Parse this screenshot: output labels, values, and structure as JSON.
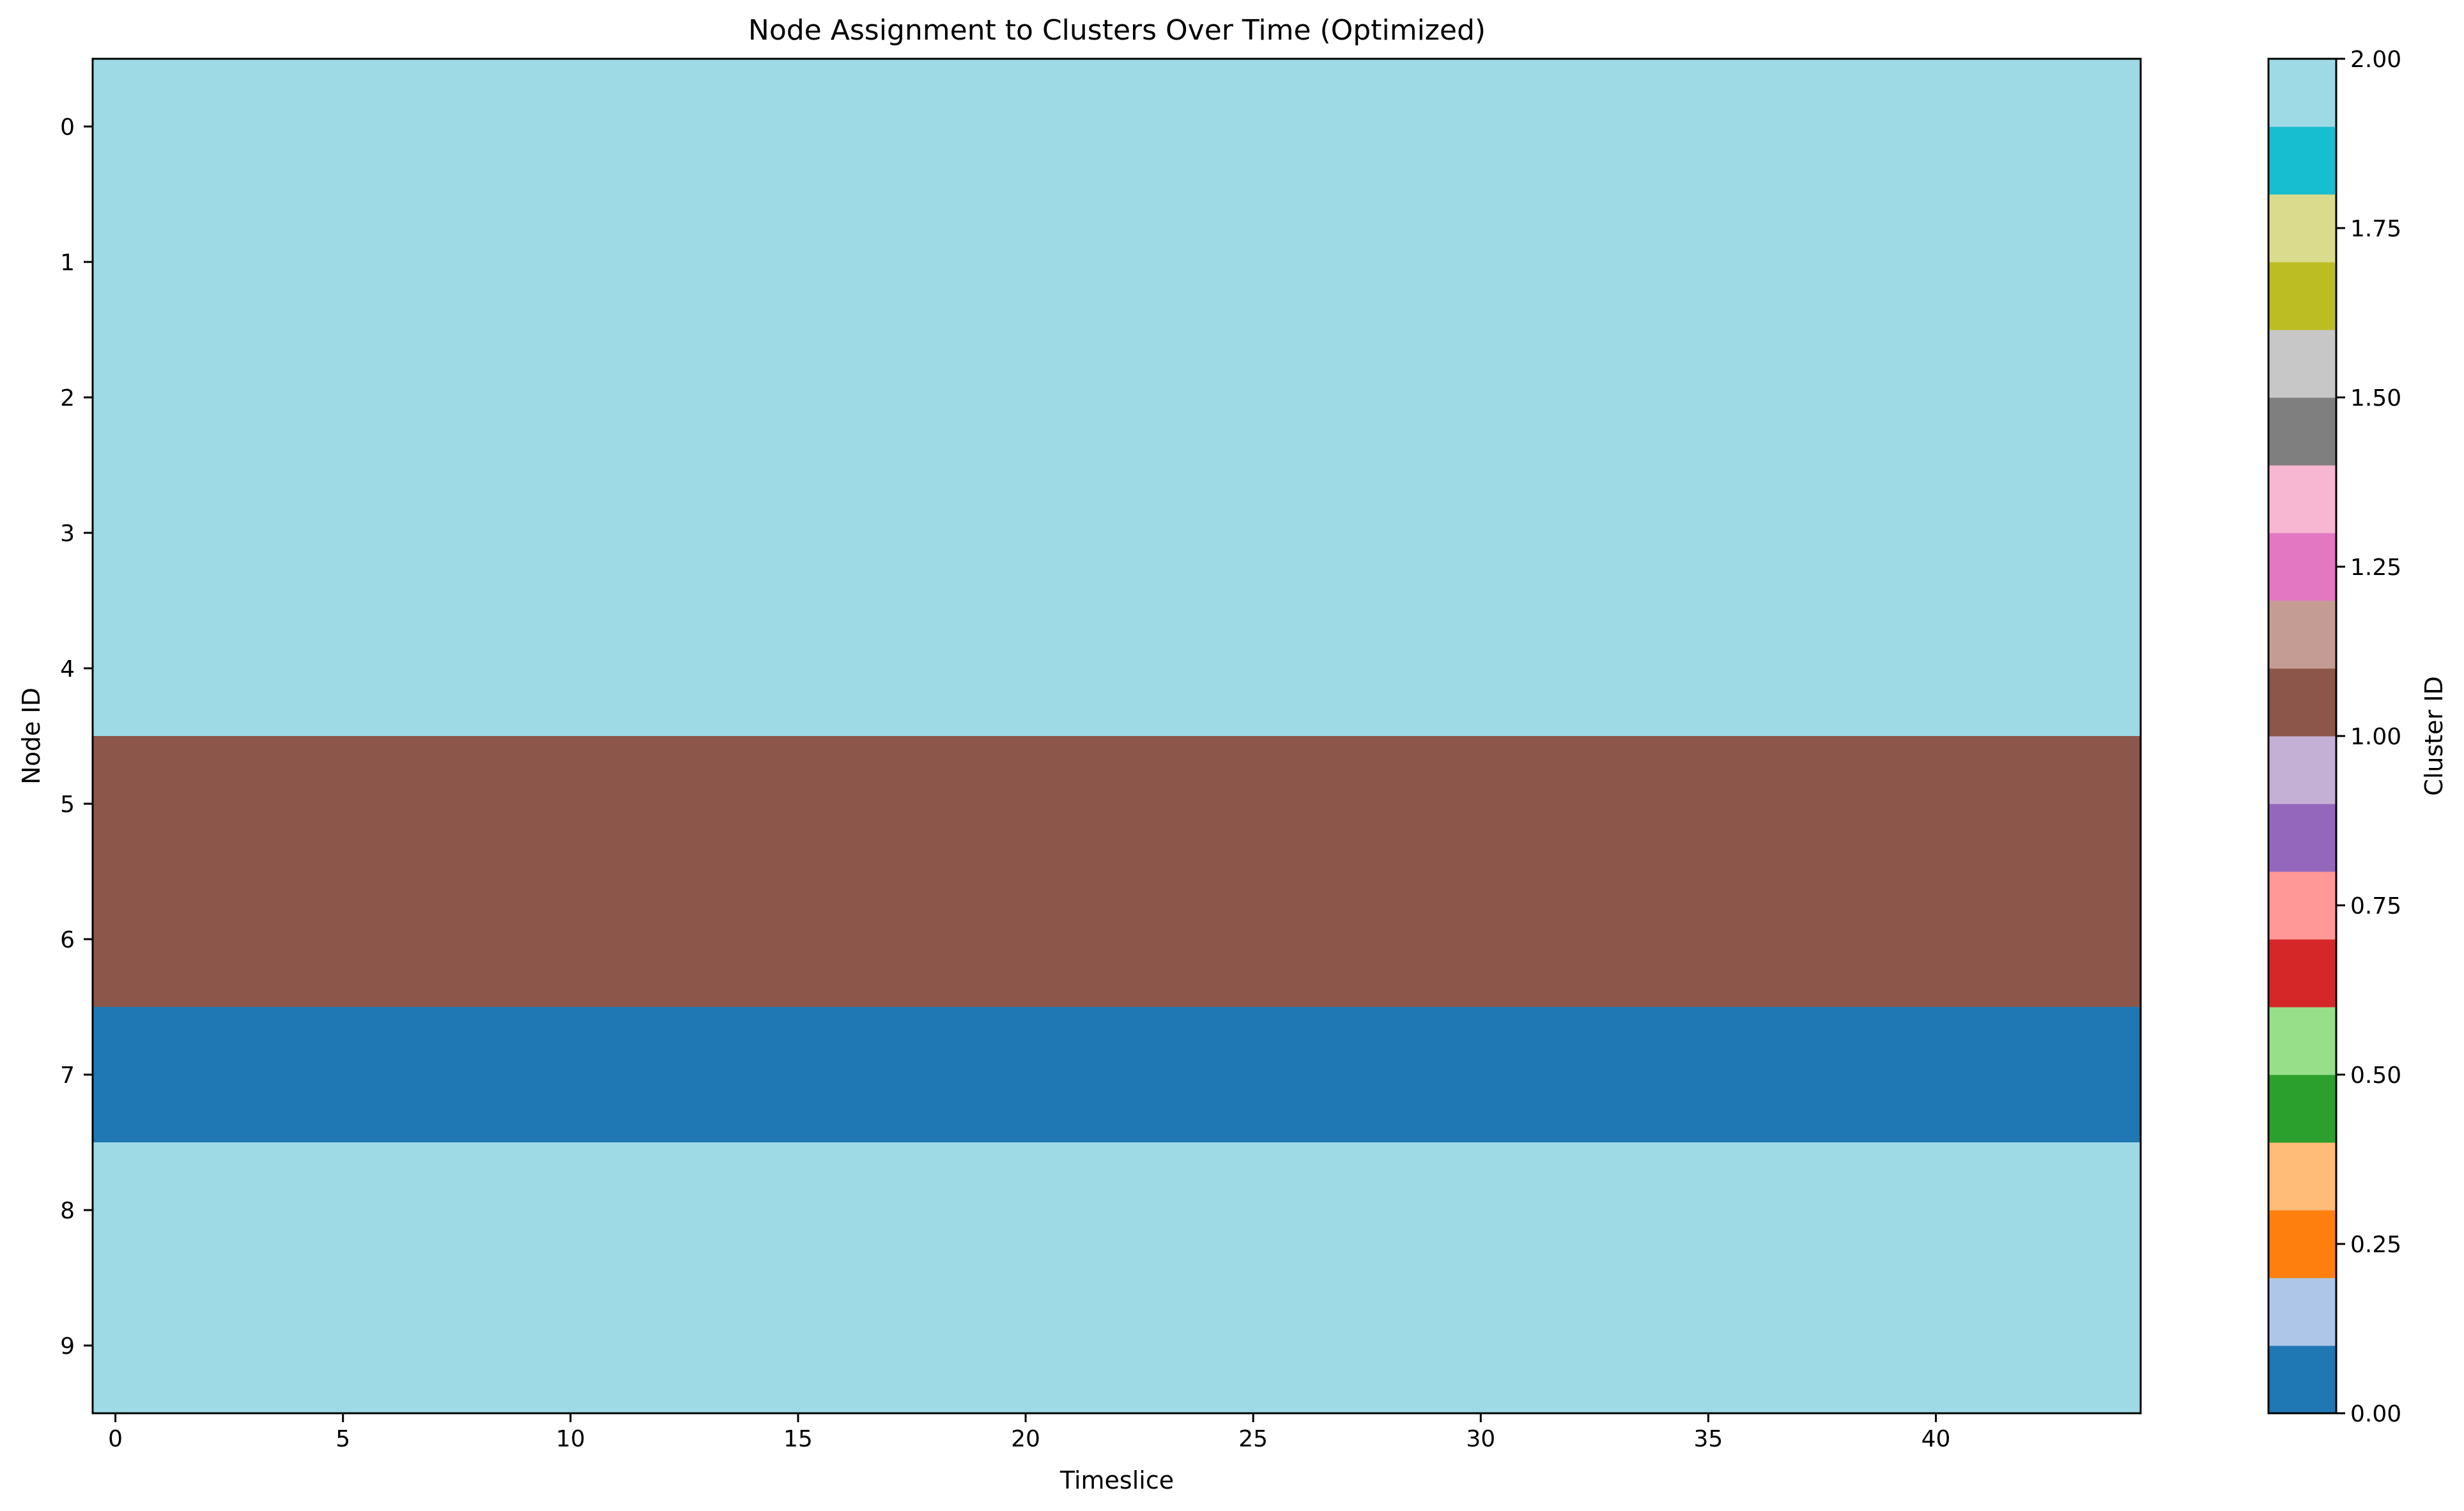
{
  "chart_data": {
    "type": "heatmap",
    "title": "Node Assignment to Clusters Over Time (Optimized)",
    "xlabel": "Timeslice",
    "ylabel": "Node ID",
    "colorbar_label": "Cluster ID",
    "num_timeslices": 45,
    "xlim": [
      -0.5,
      44.5
    ],
    "x_ticks": [
      0,
      5,
      10,
      15,
      20,
      25,
      30,
      35,
      40
    ],
    "y_ticks": [
      0,
      1,
      2,
      3,
      4,
      5,
      6,
      7,
      8,
      9
    ],
    "node_ids": [
      0,
      1,
      2,
      3,
      4,
      5,
      6,
      7,
      8,
      9
    ],
    "node_cluster_constant_over_time": [
      2,
      2,
      2,
      2,
      2,
      1,
      1,
      0,
      2,
      2
    ],
    "colorbar_range": [
      0.0,
      2.0
    ],
    "colorbar_ticks": [
      0.0,
      0.25,
      0.5,
      0.75,
      1.0,
      1.25,
      1.5,
      1.75,
      2.0
    ],
    "colorbar_tick_labels": [
      "0.00",
      "0.25",
      "0.50",
      "0.75",
      "1.00",
      "1.25",
      "1.50",
      "1.75",
      "2.00"
    ],
    "colormap": [
      "#1f77b4",
      "#aec7e8",
      "#ff7f0e",
      "#ffbb78",
      "#2ca02c",
      "#98df8a",
      "#d62728",
      "#ff9896",
      "#9467bd",
      "#c5b0d5",
      "#8c564b",
      "#c49c94",
      "#e377c2",
      "#f7b6d2",
      "#7f7f7f",
      "#c7c7c7",
      "#bcbd22",
      "#dbdb8d",
      "#17becf",
      "#9edae5"
    ],
    "grid": false
  }
}
